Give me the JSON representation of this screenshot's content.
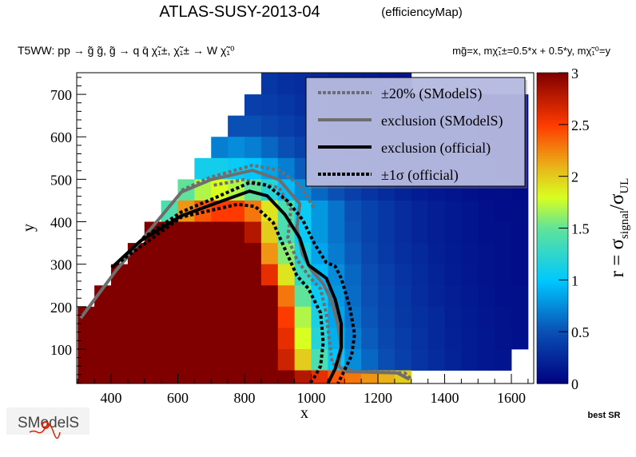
{
  "chart_data": {
    "type": "heatmap",
    "title": "ATLAS-SUSY-2013-04",
    "title_suffix": "(efficiencyMap)",
    "process": "T5WW: pp  → g̃ g̃, g̃  → q q̄ χ̃₁±, χ̃₁± → W χ̃₁⁰",
    "mass_relation": "mg̃=x, mχ̃₁±=0.5*x + 0.5*y, mχ̃₁⁰=y",
    "xlabel": "x",
    "ylabel": "y",
    "zlabel": {
      "r": "r = σ",
      "sub1": "signal",
      "mid": "/σ",
      "sub2": "UL"
    },
    "xlim": [
      297,
      1667
    ],
    "ylim": [
      19,
      751
    ],
    "zlim": [
      0,
      3
    ],
    "x_ticks": [
      "400",
      "600",
      "800",
      "1000",
      "1200",
      "1400",
      "1600"
    ],
    "y_ticks": [
      "100",
      "200",
      "300",
      "400",
      "500",
      "600",
      "700"
    ],
    "z_ticks": [
      "0",
      "0.5",
      "1",
      "1.5",
      "2",
      "2.5",
      "3"
    ],
    "footer_label": "best SR",
    "logo_text": "SModelS",
    "palette": [
      [
        0,
        "#000080"
      ],
      [
        0.5,
        "#0a4fb4"
      ],
      [
        1,
        "#00c8ff"
      ],
      [
        1.5,
        "#5fe39a"
      ],
      [
        1.8,
        "#d8ff20"
      ],
      [
        2.1,
        "#eab21a"
      ],
      [
        2.5,
        "#ff3a00"
      ],
      [
        3,
        "#800000"
      ]
    ],
    "bin_x_centers": [
      325,
      375,
      425,
      475,
      525,
      575,
      625,
      675,
      725,
      775,
      825,
      875,
      925,
      975,
      1025,
      1075,
      1125,
      1175,
      1225,
      1275,
      1325,
      1375,
      1425,
      1475,
      1525,
      1575,
      1625
    ],
    "bin_y_centers": [
      725,
      675,
      625,
      575,
      525,
      475,
      425,
      375,
      325,
      275,
      225,
      175,
      125,
      75,
      25
    ],
    "bin_size": [
      50,
      50
    ],
    "z_grid": [
      [
        null,
        null,
        null,
        null,
        null,
        null,
        null,
        null,
        null,
        null,
        null,
        0.35,
        0.3,
        0.28,
        0.25,
        0.22,
        0.2,
        0.18,
        0.15,
        0.13,
        null,
        null,
        null,
        null,
        null,
        null,
        null
      ],
      [
        null,
        null,
        null,
        null,
        null,
        null,
        null,
        null,
        null,
        null,
        0.4,
        0.38,
        0.35,
        0.3,
        0.27,
        0.24,
        0.2,
        0.18,
        0.15,
        0.13,
        0.12,
        0.1,
        0.09,
        0.08,
        0.07,
        0.06,
        0.05
      ],
      [
        null,
        null,
        null,
        null,
        null,
        null,
        null,
        null,
        null,
        0.5,
        0.5,
        0.45,
        0.4,
        0.35,
        0.3,
        0.26,
        0.22,
        0.19,
        0.16,
        0.14,
        0.12,
        0.1,
        0.09,
        0.08,
        0.07,
        0.06,
        0.05
      ],
      [
        null,
        null,
        null,
        null,
        null,
        null,
        null,
        null,
        0.7,
        0.75,
        0.7,
        0.6,
        0.5,
        0.42,
        0.36,
        0.3,
        0.25,
        0.21,
        0.18,
        0.15,
        0.13,
        0.11,
        0.1,
        0.08,
        0.07,
        0.06,
        0.05
      ],
      [
        null,
        null,
        null,
        null,
        null,
        null,
        null,
        1.1,
        1.1,
        1.05,
        1.0,
        0.85,
        0.7,
        0.55,
        0.45,
        0.38,
        0.3,
        0.25,
        0.21,
        0.18,
        0.15,
        0.13,
        0.11,
        0.09,
        0.08,
        0.07,
        0.06
      ],
      [
        null,
        null,
        null,
        null,
        null,
        null,
        1.5,
        1.7,
        1.8,
        1.7,
        1.5,
        1.2,
        0.95,
        0.75,
        0.6,
        0.5,
        0.4,
        0.33,
        0.27,
        0.22,
        0.18,
        0.15,
        0.13,
        0.11,
        0.09,
        0.08,
        0.07
      ],
      [
        null,
        null,
        null,
        null,
        null,
        1.4,
        2.2,
        2.4,
        2.5,
        2.5,
        2.3,
        1.9,
        1.4,
        1.05,
        0.8,
        0.65,
        0.5,
        0.42,
        0.35,
        0.28,
        0.23,
        0.19,
        0.16,
        0.13,
        0.11,
        0.09,
        0.08
      ],
      [
        null,
        null,
        null,
        null,
        3,
        3,
        3,
        3,
        3,
        3,
        2.8,
        2.0,
        1.4,
        1.05,
        0.8,
        0.65,
        0.52,
        0.42,
        0.35,
        0.28,
        0.23,
        0.19,
        0.16,
        0.13,
        0.11,
        0.1,
        0.09
      ],
      [
        null,
        null,
        null,
        3,
        3,
        3,
        3,
        3,
        3,
        3,
        3,
        2.2,
        1.6,
        1.15,
        0.85,
        0.68,
        0.55,
        0.45,
        0.37,
        0.3,
        0.25,
        0.2,
        0.17,
        0.14,
        0.12,
        0.1,
        0.09
      ],
      [
        null,
        null,
        3,
        3,
        3,
        3,
        3,
        3,
        3,
        3,
        3,
        2.6,
        1.9,
        1.3,
        0.95,
        0.75,
        0.6,
        0.48,
        0.4,
        0.33,
        0.27,
        0.22,
        0.18,
        0.15,
        0.12,
        0.1,
        0.09
      ],
      [
        null,
        3,
        3,
        3,
        3,
        3,
        3,
        3,
        3,
        3,
        3,
        3,
        2.3,
        1.5,
        1.05,
        0.8,
        0.62,
        0.5,
        0.42,
        0.35,
        0.28,
        0.23,
        0.19,
        0.16,
        0.13,
        0.11,
        0.1
      ],
      [
        3,
        3,
        3,
        3,
        3,
        3,
        3,
        3,
        3,
        3,
        3,
        3,
        2.5,
        1.7,
        1.15,
        0.85,
        0.65,
        0.52,
        0.43,
        0.36,
        0.3,
        0.25,
        0.2,
        0.17,
        0.14,
        0.12,
        0.1
      ],
      [
        3,
        3,
        3,
        3,
        3,
        3,
        3,
        3,
        3,
        3,
        3,
        3,
        2.6,
        1.8,
        1.2,
        0.9,
        0.7,
        0.55,
        0.45,
        0.38,
        0.32,
        0.26,
        0.21,
        0.18,
        0.15,
        0.12,
        0.11
      ],
      [
        3,
        3,
        3,
        3,
        3,
        3,
        3,
        3,
        3,
        3,
        3,
        3,
        2.7,
        2.0,
        1.4,
        1.0,
        0.75,
        0.6,
        0.48,
        0.4,
        0.33,
        0.27,
        0.22,
        0.18,
        0.15,
        0.13,
        null
      ],
      [
        3,
        3,
        3,
        3,
        3,
        3,
        3,
        3,
        3,
        3,
        3,
        3,
        3,
        2.8,
        2.6,
        2.4,
        2.3,
        2.2,
        2.1,
        2.0,
        null,
        null,
        null,
        null,
        null,
        null,
        null
      ]
    ],
    "contours": [
      {
        "name": "exclusion-smodels-plus20",
        "label": "±20% (SModelS)",
        "color": "#6e6e6e",
        "style": "dotted",
        "points": [
          [
            611,
            474
          ],
          [
            699,
            505
          ],
          [
            824,
            533
          ],
          [
            904,
            521
          ],
          [
            966,
            486
          ],
          [
            1010,
            430
          ]
        ]
      },
      {
        "name": "exclusion-smodels-minus20",
        "label": "±20% (SModelS)",
        "color": "#6e6e6e",
        "style": "dotted",
        "points": [
          [
            708,
            486
          ],
          [
            797,
            499
          ],
          [
            904,
            480
          ],
          [
            939,
            430
          ],
          [
            930,
            361
          ],
          [
            957,
            311
          ],
          [
            992,
            273
          ],
          [
            1028,
            242
          ],
          [
            1045,
            185
          ],
          [
            1054,
            123
          ],
          [
            1063,
            66
          ],
          [
            1134,
            47
          ],
          [
            1280,
            44
          ],
          [
            1300,
            29
          ]
        ]
      },
      {
        "name": "exclusion-smodels",
        "label": "exclusion (SModelS)",
        "color": "#6e6e6e",
        "style": "solid",
        "points": [
          [
            309,
            173
          ],
          [
            416,
            286
          ],
          [
            575,
            436
          ],
          [
            611,
            470
          ],
          [
            699,
            499
          ],
          [
            824,
            521
          ],
          [
            904,
            499
          ],
          [
            966,
            442
          ],
          [
            957,
            386
          ],
          [
            974,
            323
          ],
          [
            1001,
            286
          ],
          [
            1036,
            254
          ],
          [
            1063,
            210
          ],
          [
            1081,
            154
          ],
          [
            1090,
            98
          ],
          [
            1081,
            60
          ],
          [
            1107,
            47
          ],
          [
            1258,
            44
          ],
          [
            1294,
            29
          ]
        ]
      },
      {
        "name": "exclusion-official",
        "label": "exclusion (official)",
        "color": "#000000",
        "style": "solid",
        "points": [
          [
            402,
            292
          ],
          [
            487,
            354
          ],
          [
            611,
            414
          ],
          [
            708,
            442
          ],
          [
            815,
            472
          ],
          [
            868,
            461
          ],
          [
            921,
            417
          ],
          [
            966,
            361
          ],
          [
            992,
            298
          ],
          [
            1045,
            267
          ],
          [
            1072,
            217
          ],
          [
            1090,
            160
          ],
          [
            1090,
            104
          ],
          [
            1072,
            54
          ],
          [
            1050,
            19
          ]
        ]
      },
      {
        "name": "exclusion-official-plus1sigma",
        "label": "±1σ (official)",
        "color": "#000000",
        "style": "dotted",
        "points": [
          [
            495,
            361
          ],
          [
            611,
            423
          ],
          [
            708,
            455
          ],
          [
            815,
            492
          ],
          [
            868,
            486
          ],
          [
            930,
            448
          ],
          [
            974,
            405
          ],
          [
            1010,
            348
          ],
          [
            1045,
            304
          ],
          [
            1072,
            295
          ],
          [
            1090,
            267
          ],
          [
            1116,
            198
          ],
          [
            1130,
            135
          ],
          [
            1121,
            85
          ],
          [
            1094,
            41
          ],
          [
            1080,
            19
          ]
        ]
      },
      {
        "name": "exclusion-official-minus1sigma",
        "label": "±1σ (official)",
        "color": "#000000",
        "style": "dotted",
        "points": [
          [
            402,
            292
          ],
          [
            611,
            411
          ],
          [
            779,
            441
          ],
          [
            832,
            436
          ],
          [
            886,
            398
          ],
          [
            921,
            336
          ],
          [
            957,
            273
          ],
          [
            992,
            242
          ],
          [
            1028,
            185
          ],
          [
            1036,
            116
          ],
          [
            1028,
            60
          ],
          [
            1006,
            29
          ],
          [
            995,
            19
          ]
        ]
      }
    ],
    "legend": {
      "placement": "top-right",
      "entries": [
        {
          "label": "±20% (SModelS)",
          "color": "#6e6e6e",
          "style": "dotted"
        },
        {
          "label": "exclusion (SModelS)",
          "color": "#6e6e6e",
          "style": "solid"
        },
        {
          "label": "exclusion (official)",
          "color": "#000000",
          "style": "solid"
        },
        {
          "label": "±1σ (official)",
          "color": "#000000",
          "style": "dotted"
        }
      ]
    }
  }
}
